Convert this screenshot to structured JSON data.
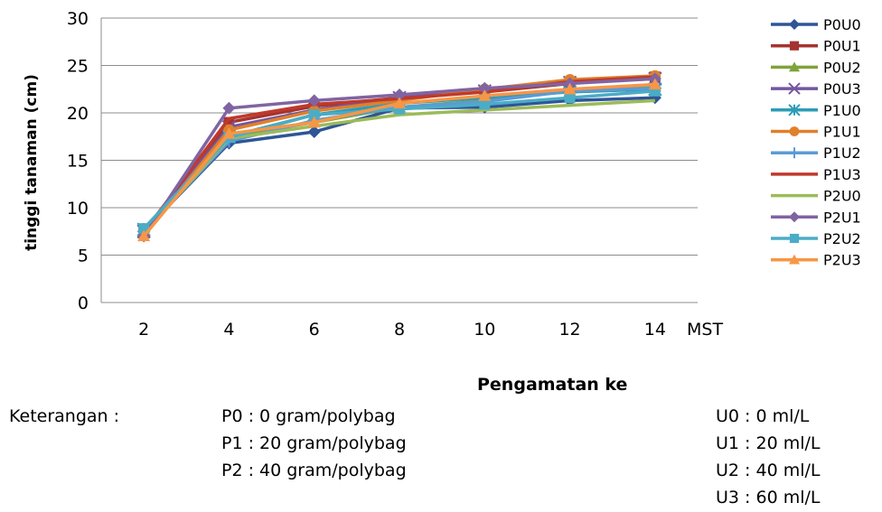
{
  "chart_data": {
    "type": "line",
    "title": "",
    "ylabel": "tinggi tanaman (cm)",
    "xlabel": "Pengamatan ke",
    "x_unit_label": "MST",
    "categories": [
      "2",
      "4",
      "6",
      "8",
      "10",
      "12",
      "14"
    ],
    "ylim": [
      0,
      30
    ],
    "yticks": [
      0,
      5,
      10,
      15,
      20,
      25,
      30
    ],
    "grid": "horizontal",
    "legend_position": "right",
    "series": [
      {
        "name": "P0U0",
        "color": "#2F5597",
        "marker": "diamond",
        "values": [
          7.5,
          16.8,
          18.0,
          20.5,
          20.6,
          21.3,
          21.6
        ]
      },
      {
        "name": "P0U1",
        "color": "#A5332F",
        "marker": "square",
        "values": [
          7.5,
          19.0,
          20.7,
          21.6,
          22.2,
          23.1,
          23.8
        ]
      },
      {
        "name": "P0U2",
        "color": "#7FA33A",
        "marker": "triangle",
        "values": [
          7.3,
          17.5,
          19.0,
          20.6,
          21.3,
          22.3,
          22.8
        ]
      },
      {
        "name": "P0U3",
        "color": "#7356A0",
        "marker": "x",
        "values": [
          7.5,
          18.5,
          20.3,
          21.6,
          22.3,
          23.2,
          23.6
        ]
      },
      {
        "name": "P1U0",
        "color": "#2E9CB6",
        "marker": "star",
        "values": [
          7.7,
          17.5,
          19.8,
          21.0,
          21.6,
          22.2,
          22.5
        ]
      },
      {
        "name": "P1U1",
        "color": "#E0802A",
        "marker": "circle",
        "values": [
          7.2,
          18.2,
          20.2,
          21.3,
          22.5,
          23.5,
          23.9
        ]
      },
      {
        "name": "P1U2",
        "color": "#5B9BD5",
        "marker": "plus",
        "values": [
          7.5,
          17.0,
          19.2,
          20.6,
          21.2,
          22.3,
          22.6
        ]
      },
      {
        "name": "P1U3",
        "color": "#C0392B",
        "marker": "none",
        "values": [
          7.4,
          19.4,
          20.9,
          21.5,
          22.2,
          23.3,
          23.8
        ]
      },
      {
        "name": "P2U0",
        "color": "#9BBB59",
        "marker": "none",
        "values": [
          7.3,
          17.3,
          18.6,
          19.8,
          20.3,
          20.8,
          21.3
        ]
      },
      {
        "name": "P2U1",
        "color": "#8064A2",
        "marker": "diamond",
        "values": [
          7.0,
          20.5,
          21.3,
          21.9,
          22.6,
          23.1,
          23.6
        ]
      },
      {
        "name": "P2U2",
        "color": "#4BACC6",
        "marker": "square",
        "values": [
          7.8,
          17.4,
          19.8,
          20.4,
          20.9,
          21.6,
          22.3
        ]
      },
      {
        "name": "P2U3",
        "color": "#F79646",
        "marker": "triangle",
        "values": [
          7.0,
          17.8,
          19.0,
          21.0,
          21.8,
          22.5,
          23.0
        ]
      }
    ]
  },
  "notes": {
    "label": "Keterangan :",
    "p_items": [
      "P0  : 0 gram/polybag",
      "P1  : 20 gram/polybag",
      "P2  : 40 gram/polybag"
    ],
    "u_items": [
      "U0 : 0 ml/L",
      "U1 : 20 ml/L",
      "U2 : 40 ml/L",
      "U3 : 60 ml/L"
    ]
  }
}
